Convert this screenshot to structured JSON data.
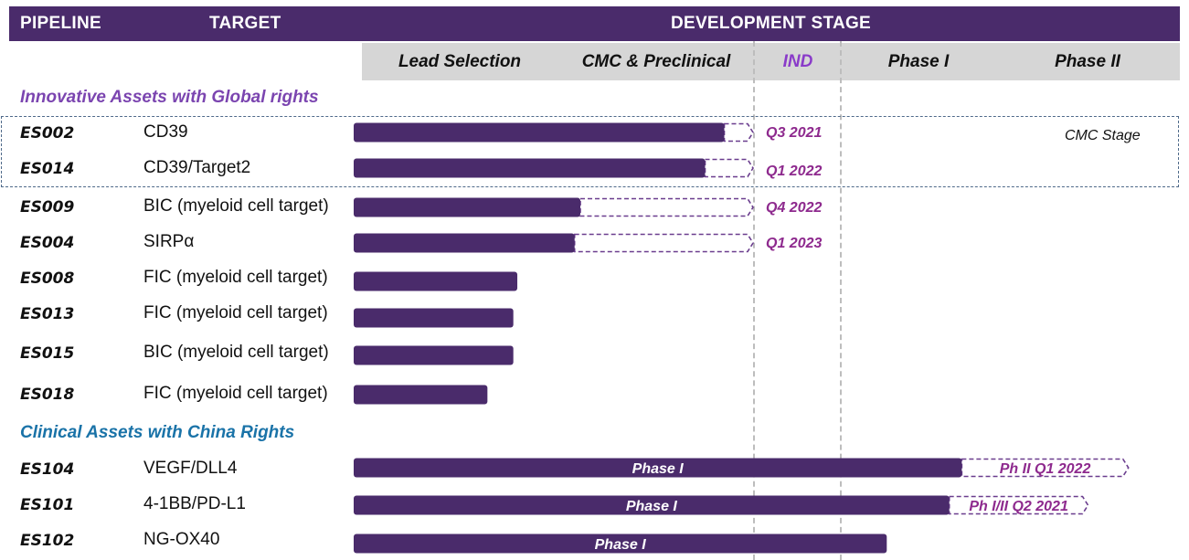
{
  "header": {
    "pipeline": "PIPELINE",
    "target": "TARGET",
    "development_stage": "DEVELOPMENT STAGE"
  },
  "stages": [
    "Lead Selection",
    "CMC & Preclinical",
    "IND",
    "Phase I",
    "Phase II"
  ],
  "sections": {
    "innovative": "Innovative Assets with Global rights",
    "clinical": "Clinical Assets with China Rights"
  },
  "colors": {
    "header_bg": "#4a2b6b",
    "bar": "#4a2b6b",
    "projection_outline": "#6a3d8e",
    "milestone_text": "#8e2a8e",
    "innovative_section": "#7b45b0",
    "clinical_section": "#1a73a8",
    "stage_band": "#d6d6d6"
  },
  "cmc_note": "CMC Stage",
  "chart_data": {
    "type": "gantt",
    "stage_scale": [
      "Lead Selection",
      "CMC & Preclinical",
      "IND",
      "Phase I",
      "Phase II"
    ],
    "rows": [
      {
        "id": "ES002",
        "target": "CD39",
        "progress_end": 1.85,
        "projection_end": 2.0,
        "milestone": "Q3 2021",
        "bar_label": "",
        "projection_label": ""
      },
      {
        "id": "ES014",
        "target": "CD39/Target2",
        "progress_end": 1.75,
        "projection_end": 2.0,
        "milestone": "Q1 2022",
        "bar_label": "",
        "projection_label": ""
      },
      {
        "id": "ES009",
        "target": "BIC (myeloid cell target)",
        "progress_end": 1.1,
        "projection_end": 2.0,
        "milestone": "Q4 2022",
        "bar_label": "",
        "projection_label": ""
      },
      {
        "id": "ES004",
        "target": "SIRPα",
        "progress_end": 1.07,
        "projection_end": 2.0,
        "milestone": "Q1 2023",
        "bar_label": "",
        "projection_label": ""
      },
      {
        "id": "ES008",
        "target": "FIC (myeloid cell target)",
        "progress_end": 0.78,
        "projection_end": null,
        "milestone": "",
        "bar_label": "",
        "projection_label": ""
      },
      {
        "id": "ES013",
        "target": "FIC (myeloid cell target)",
        "progress_end": 0.76,
        "projection_end": null,
        "milestone": "",
        "bar_label": "",
        "projection_label": ""
      },
      {
        "id": "ES015",
        "target": "BIC (myeloid cell target)",
        "progress_end": 0.76,
        "projection_end": null,
        "milestone": "",
        "bar_label": "",
        "projection_label": ""
      },
      {
        "id": "ES018",
        "target": "FIC (myeloid cell target)",
        "progress_end": 0.63,
        "projection_end": null,
        "milestone": "",
        "bar_label": "",
        "projection_label": ""
      },
      {
        "id": "ES104",
        "target": "VEGF/DLL4",
        "progress_end": 3.78,
        "projection_end": 4.72,
        "milestone": "",
        "bar_label": "Phase I",
        "projection_label": "Ph II Q1 2022"
      },
      {
        "id": "ES101",
        "target": "4-1BB/PD-L1",
        "progress_end": 3.7,
        "projection_end": 4.5,
        "milestone": "",
        "bar_label": "Phase I",
        "projection_label": "Ph I/II Q2 2021"
      },
      {
        "id": "ES102",
        "target": "NG-OX40",
        "progress_end": 3.3,
        "projection_end": null,
        "milestone": "",
        "bar_label": "Phase I",
        "projection_label": ""
      }
    ]
  }
}
